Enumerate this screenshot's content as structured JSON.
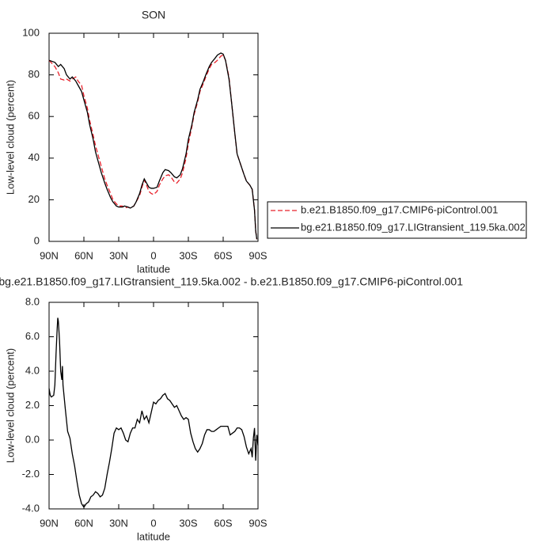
{
  "chart_data": [
    {
      "type": "line",
      "title": "SON",
      "xlabel": "latitude",
      "ylabel": "Low-level cloud (percent)",
      "x": [
        90,
        85,
        82,
        80,
        77,
        75,
        72,
        70,
        67,
        65,
        62,
        60,
        57,
        55,
        52,
        50,
        47,
        45,
        42,
        40,
        37,
        35,
        32,
        30,
        27,
        25,
        22,
        20,
        17,
        15,
        12,
        10,
        8,
        6,
        4,
        2,
        0,
        -3,
        -5,
        -8,
        -10,
        -13,
        -15,
        -18,
        -20,
        -23,
        -25,
        -28,
        -30,
        -33,
        -35,
        -38,
        -40,
        -43,
        -45,
        -48,
        -50,
        -53,
        -55,
        -58,
        -60,
        -62,
        -65,
        -67,
        -70,
        -72,
        -75,
        -78,
        -80,
        -83,
        -85,
        -87,
        -88,
        -89
      ],
      "series": [
        {
          "name": "b.e21.B1850.f09_g17.CMIP6-piControl.001",
          "color": "#e8202a",
          "dashed": true,
          "values": [
            87,
            84,
            81,
            78,
            77.5,
            78,
            77,
            78,
            79,
            77,
            75,
            70,
            64,
            58,
            51,
            46,
            40,
            36,
            30,
            27,
            23,
            20,
            18,
            17,
            17,
            16,
            16.5,
            16,
            17,
            19,
            22,
            26,
            29.5,
            27,
            24,
            23,
            22.5,
            24,
            27,
            30,
            31.5,
            32,
            31,
            28.5,
            28,
            30,
            33,
            40,
            47,
            55,
            61,
            67,
            72,
            76,
            79,
            83,
            85,
            86,
            87,
            89,
            89.5,
            87,
            79,
            68,
            52,
            42,
            37,
            32,
            29,
            27,
            25,
            15,
            5,
            1
          ]
        },
        {
          "name": "bg.e21.B1850.f09_g17.LIGtransient_119.5ka.002",
          "color": "#000000",
          "dashed": false,
          "values": [
            87,
            86,
            84,
            85,
            83,
            80,
            78,
            79,
            77,
            75,
            72,
            68,
            62,
            56,
            49,
            43,
            37,
            33,
            28,
            25,
            21,
            19,
            17,
            16.5,
            16.5,
            17,
            16.5,
            16,
            17,
            19,
            23,
            27,
            30,
            28,
            26,
            25.5,
            25.5,
            26,
            29,
            33,
            34.5,
            34,
            33,
            31,
            30.5,
            32,
            35,
            42,
            49,
            56,
            62,
            68,
            73,
            77,
            80,
            84,
            86,
            88,
            89.5,
            90.5,
            90,
            87,
            78,
            68,
            52,
            42,
            37,
            32,
            29,
            27,
            25,
            15,
            5,
            1
          ]
        }
      ],
      "xlim": [
        90,
        -90
      ],
      "xticks": [
        {
          "value": 90,
          "label": "90N"
        },
        {
          "value": 60,
          "label": "60N"
        },
        {
          "value": 30,
          "label": "30N"
        },
        0,
        {
          "value": -30,
          "label": "30S"
        },
        {
          "value": -60,
          "label": "60S"
        },
        {
          "value": -90,
          "label": "90S"
        }
      ],
      "ylim": [
        0,
        100
      ],
      "yticks": [
        0,
        20,
        40,
        60,
        80,
        100
      ]
    },
    {
      "type": "line",
      "title": "bg.e21.B1850.f09_g17.LIGtransient_119.5ka.002 - b.e21.B1850.f09_g17.CMIP6-piControl.001",
      "xlabel": "latitude",
      "ylabel": "Low-level cloud (percent)",
      "x": [
        90,
        89,
        88,
        86,
        85,
        84,
        83,
        82.5,
        82,
        81,
        80,
        79,
        78.5,
        78,
        76,
        74,
        72,
        70,
        68,
        66,
        64,
        62,
        60,
        58,
        56,
        54,
        52,
        50,
        48,
        46,
        44,
        42,
        40,
        38,
        36,
        34,
        32,
        30,
        28,
        26,
        24,
        22,
        20,
        18,
        16,
        14,
        12,
        10,
        8,
        6,
        4,
        2,
        0,
        -2,
        -4,
        -6,
        -8,
        -10,
        -12,
        -14,
        -16,
        -18,
        -20,
        -22,
        -24,
        -26,
        -28,
        -30,
        -32,
        -34,
        -36,
        -38,
        -40,
        -42,
        -44,
        -46,
        -48,
        -50,
        -52,
        -54,
        -56,
        -58,
        -60,
        -62,
        -64,
        -66,
        -68,
        -70,
        -72,
        -74,
        -76,
        -78,
        -80,
        -82,
        -84,
        -85,
        -86,
        -87,
        -88,
        -89,
        -90
      ],
      "series": [
        {
          "color": "#000000",
          "dashed": false,
          "values": [
            3.0,
            2.6,
            2.5,
            2.6,
            3.2,
            5.0,
            6.5,
            7.1,
            6.9,
            5.8,
            4.0,
            3.5,
            4.3,
            3.2,
            1.8,
            0.5,
            0.1,
            -0.8,
            -1.5,
            -2.4,
            -3.2,
            -3.7,
            -3.9,
            -3.7,
            -3.6,
            -3.3,
            -3.2,
            -3.0,
            -3.1,
            -3.3,
            -3.2,
            -2.8,
            -2.0,
            -1.3,
            -0.5,
            0.4,
            0.7,
            0.6,
            0.7,
            0.4,
            0.0,
            -0.1,
            0.4,
            0.7,
            0.7,
            1.2,
            1.0,
            1.7,
            1.2,
            1.4,
            1.0,
            1.6,
            2.2,
            2.1,
            2.3,
            2.4,
            2.6,
            2.7,
            2.4,
            2.3,
            2.1,
            1.9,
            2.0,
            1.7,
            1.4,
            1.2,
            1.3,
            1.2,
            0.4,
            -0.1,
            -0.5,
            -0.7,
            -0.5,
            -0.2,
            0.3,
            0.6,
            0.6,
            0.5,
            0.5,
            0.6,
            0.7,
            0.8,
            0.8,
            0.8,
            0.8,
            0.3,
            0.4,
            0.5,
            0.7,
            0.7,
            0.6,
            0.2,
            -0.4,
            -0.8,
            -0.5,
            -1.0,
            0.1,
            0.7,
            -1.2,
            0.3,
            -0.3
          ]
        }
      ],
      "xlim": [
        90,
        -90
      ],
      "xticks": [
        {
          "value": 90,
          "label": "90N"
        },
        {
          "value": 60,
          "label": "60N"
        },
        {
          "value": 30,
          "label": "30N"
        },
        0,
        {
          "value": -30,
          "label": "30S"
        },
        {
          "value": -60,
          "label": "60S"
        },
        {
          "value": -90,
          "label": "90S"
        }
      ],
      "ylim": [
        -4,
        8
      ],
      "yticks": [
        {
          "value": -4,
          "label": "-4.0"
        },
        {
          "value": -2,
          "label": "-2.0"
        },
        {
          "value": 0,
          "label": "0.0"
        },
        {
          "value": 2,
          "label": "2.0"
        },
        {
          "value": 4,
          "label": "4.0"
        },
        {
          "value": 6,
          "label": "6.0"
        },
        {
          "value": 8,
          "label": "8.0"
        }
      ]
    }
  ]
}
